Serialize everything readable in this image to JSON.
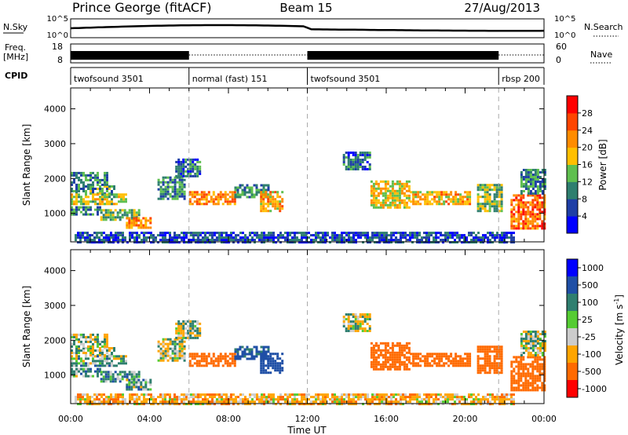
{
  "chart_data": {
    "type": "heatmap",
    "header": {
      "station": "Prince George (fitACF)",
      "beam": "Beam 15",
      "date": "27/Aug/2013"
    },
    "nsky": {
      "label_top": "N.Sky",
      "left_ticks": [
        "10^5",
        "10^0"
      ],
      "right_ticks": [
        "10^5",
        "10^0"
      ],
      "legend": "N.Search"
    },
    "freq": {
      "label": "Freq.",
      "unit": "[MHz]",
      "left_ticks": [
        "18",
        "8"
      ],
      "right_ticks": [
        "60",
        "0"
      ],
      "legend": "Nave"
    },
    "cpid": {
      "label": "CPID",
      "segments": [
        {
          "start_hour": 0.0,
          "end_hour": 6.0,
          "text": "twofsound 3501"
        },
        {
          "start_hour": 6.0,
          "end_hour": 12.0,
          "text": "normal (fast) 151"
        },
        {
          "start_hour": 12.0,
          "end_hour": 21.7,
          "text": "twofsound 3501"
        },
        {
          "start_hour": 21.7,
          "end_hour": 24.0,
          "text": "rbsp 200"
        }
      ]
    },
    "x_axis": {
      "label": "Time UT",
      "range_hours": [
        0,
        24
      ],
      "tick_labels": [
        "00:00",
        "04:00",
        "08:00",
        "12:00",
        "16:00",
        "20:00",
        "00:00"
      ]
    },
    "y_axis": {
      "label": "Slant Range [km]",
      "range_km": [
        180,
        4600
      ],
      "tick_labels": [
        "1000",
        "2000",
        "3000",
        "4000"
      ]
    },
    "power_panel": {
      "colorbar_label": "Power [dB]",
      "colorbar_ticks": [
        "4",
        "8",
        "12",
        "16",
        "20",
        "24",
        "28"
      ],
      "colorbar_range": [
        0,
        32
      ],
      "colors": [
        "#0000ff",
        "#1f3fa6",
        "#2f7f6f",
        "#5fbf4f",
        "#ffbf00",
        "#ff8c00",
        "#ff4500",
        "#ff0000"
      ]
    },
    "velocity_panel": {
      "colorbar_label": "Velocity [m s",
      "colorbar_label_exp": "-1",
      "colorbar_label_close": "]",
      "colorbar_ticks": [
        "1000",
        "500",
        "100",
        "25",
        "-25",
        "-100",
        "-500",
        "-1000"
      ],
      "colors": [
        "#0000ff",
        "#1f4fa6",
        "#2f7f6f",
        "#55cc33",
        "#cccccc",
        "#ffa500",
        "#ff6a00",
        "#ff0000"
      ]
    },
    "echo_regions": [
      {
        "start_hour": 0.0,
        "end_hour": 2.2,
        "range_start_km": 1600,
        "range_end_km": 1850,
        "power_db": 12,
        "velocity_ms": 0
      },
      {
        "start_hour": 0.0,
        "end_hour": 1.8,
        "range_start_km": 1850,
        "range_end_km": 2200,
        "power_db": 10,
        "velocity_ms": 0
      },
      {
        "start_hour": 0.0,
        "end_hour": 2.8,
        "range_start_km": 1300,
        "range_end_km": 1600,
        "power_db": 16,
        "velocity_ms": 30
      },
      {
        "start_hour": 0.0,
        "end_hour": 1.5,
        "range_start_km": 1000,
        "range_end_km": 1250,
        "power_db": 10,
        "velocity_ms": 50
      },
      {
        "start_hour": 1.5,
        "end_hour": 3.5,
        "range_start_km": 850,
        "range_end_km": 1150,
        "power_db": 14,
        "velocity_ms": 60
      },
      {
        "start_hour": 2.8,
        "end_hour": 4.0,
        "range_start_km": 620,
        "range_end_km": 900,
        "power_db": 22,
        "velocity_ms": 40
      },
      {
        "start_hour": 4.4,
        "end_hour": 5.8,
        "range_start_km": 1450,
        "range_end_km": 2100,
        "power_db": 10,
        "velocity_ms": -10
      },
      {
        "start_hour": 5.3,
        "end_hour": 6.6,
        "range_start_km": 2100,
        "range_end_km": 2600,
        "power_db": 8,
        "velocity_ms": -5
      },
      {
        "start_hour": 6.0,
        "end_hour": 8.3,
        "range_start_km": 1300,
        "range_end_km": 1700,
        "power_db": 22,
        "velocity_ms": -300
      },
      {
        "start_hour": 8.3,
        "end_hour": 10.0,
        "range_start_km": 1500,
        "range_end_km": 1900,
        "power_db": 10,
        "velocity_ms": 150
      },
      {
        "start_hour": 9.6,
        "end_hour": 10.7,
        "range_start_km": 1100,
        "range_end_km": 1700,
        "power_db": 20,
        "velocity_ms": 400
      },
      {
        "start_hour": 0.2,
        "end_hour": 22.5,
        "range_start_km": 200,
        "range_end_km": 520,
        "power_db": 6,
        "velocity_ms": -60
      },
      {
        "start_hour": 13.8,
        "end_hour": 15.2,
        "range_start_km": 2300,
        "range_end_km": 2800,
        "power_db": 8,
        "velocity_ms": 0
      },
      {
        "start_hour": 15.2,
        "end_hour": 17.2,
        "range_start_km": 1200,
        "range_end_km": 2000,
        "power_db": 18,
        "velocity_ms": -300
      },
      {
        "start_hour": 17.2,
        "end_hour": 20.2,
        "range_start_km": 1300,
        "range_end_km": 1700,
        "power_db": 20,
        "velocity_ms": -250
      },
      {
        "start_hour": 20.6,
        "end_hour": 21.8,
        "range_start_km": 1100,
        "range_end_km": 1900,
        "power_db": 14,
        "velocity_ms": -200
      },
      {
        "start_hour": 22.3,
        "end_hour": 24.0,
        "range_start_km": 600,
        "range_end_km": 1600,
        "power_db": 24,
        "velocity_ms": -400
      },
      {
        "start_hour": 22.8,
        "end_hour": 24.0,
        "range_start_km": 1600,
        "range_end_km": 2300,
        "power_db": 10,
        "velocity_ms": 0
      }
    ]
  }
}
